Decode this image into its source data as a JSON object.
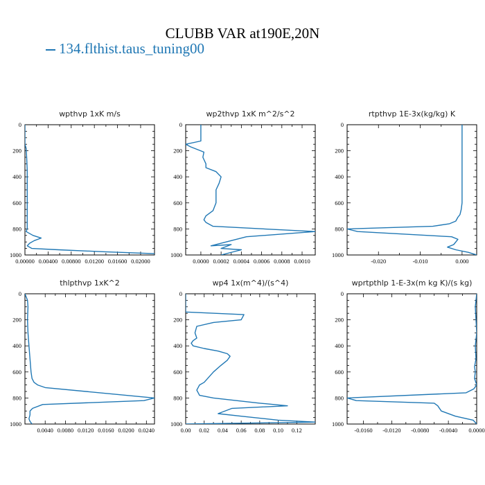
{
  "header": {
    "title": "CLUBB VAR at190E,20N",
    "legend_label": "134.flthist.taus_tuning00",
    "legend_color": "#1f77b4"
  },
  "chart_data": [
    {
      "type": "line",
      "title": "wpthvp   1xK m/s",
      "xlim": [
        0,
        0.0224
      ],
      "ylim": [
        1000,
        0
      ],
      "yticks": [
        0,
        200,
        400,
        600,
        800,
        1000
      ],
      "xticks": [
        0.0,
        0.004,
        0.008,
        0.012,
        0.016,
        0.02
      ],
      "xticklabels": [
        "0.00000",
        "0.00400",
        "0.00800",
        "0.01200",
        "0.01600",
        "0.02000"
      ],
      "series": [
        {
          "color": "#1f77b4",
          "x": [
            0.0,
            0.0,
            0.0,
            0.0,
            0.0002,
            0.0003,
            0.0004,
            0.0004,
            0.0004,
            0.0004,
            0.0004,
            0.0004,
            0.0004,
            0.0002,
            0.0014,
            0.0028,
            0.0016,
            0.0008,
            0.0004,
            0.0012,
            0.0058,
            0.0135,
            0.0224
          ],
          "y": [
            0,
            100,
            135,
            150,
            180,
            250,
            350,
            450,
            550,
            650,
            720,
            780,
            800,
            820,
            850,
            870,
            890,
            910,
            930,
            950,
            960,
            975,
            990
          ]
        }
      ]
    },
    {
      "type": "line",
      "title": "wp2thvp   1xK m^2/s^2",
      "xlim": [
        -0.00015,
        0.00113
      ],
      "ylim": [
        1000,
        0
      ],
      "yticks": [
        0,
        200,
        400,
        600,
        800,
        1000
      ],
      "xticks": [
        0.0,
        0.0002,
        0.0004,
        0.0006,
        0.0008,
        0.001
      ],
      "xticklabels": [
        "0.0000",
        "0.0002",
        "0.0004",
        "0.0006",
        "0.0008",
        "0.0010"
      ],
      "series": [
        {
          "color": "#1f77b4",
          "x": [
            0.0,
            0.0,
            0.0,
            -0.00015,
            -0.0001,
            3e-05,
            2e-05,
            5e-05,
            5e-05,
            0.00015,
            0.0002,
            0.00018,
            0.00015,
            0.00015,
            0.00012,
            5e-05,
            3e-05,
            5e-05,
            0.00012,
            0.00113,
            0.00045,
            0.00025,
            0.0001,
            0.0003,
            0.0002,
            0.0004,
            0.0002
          ],
          "y": [
            0,
            50,
            125,
            150,
            170,
            210,
            250,
            300,
            330,
            360,
            400,
            450,
            500,
            600,
            660,
            700,
            730,
            750,
            780,
            820,
            860,
            900,
            930,
            920,
            950,
            960,
            1000
          ]
        }
      ]
    },
    {
      "type": "line",
      "title": "rtpthvp   1E-3x(kg/kg) K",
      "xlim": [
        -0.0275,
        0.0035
      ],
      "ylim": [
        1000,
        0
      ],
      "yticks": [
        0,
        200,
        400,
        600,
        800,
        1000
      ],
      "xticks": [
        -0.02,
        -0.01,
        0.0
      ],
      "xticklabels": [
        "-0.020",
        "-0.010",
        "0.000"
      ],
      "series": [
        {
          "color": "#1f77b4",
          "x": [
            0.0,
            0.0,
            0.0,
            0.0,
            0.0,
            -0.0002,
            -0.0005,
            -0.001,
            -0.0015,
            -0.003,
            -0.007,
            -0.0275,
            -0.025,
            -0.0025,
            -0.001,
            -0.002,
            -0.0035,
            -0.0015,
            0.0015,
            0.0035
          ],
          "y": [
            0,
            100,
            300,
            500,
            600,
            650,
            690,
            710,
            740,
            760,
            780,
            800,
            820,
            860,
            880,
            920,
            940,
            960,
            980,
            1000
          ]
        }
      ]
    },
    {
      "type": "line",
      "title": "thlpthvp   1xK^2",
      "xlim": [
        0.0,
        0.0256
      ],
      "ylim": [
        1000,
        0
      ],
      "yticks": [
        0,
        200,
        400,
        600,
        800,
        1000
      ],
      "xticks": [
        0.004,
        0.008,
        0.012,
        0.016,
        0.02,
        0.024
      ],
      "xticklabels": [
        "0.0040",
        "0.0080",
        "0.0120",
        "0.0160",
        "0.0200",
        "0.0240"
      ],
      "series": [
        {
          "color": "#1f77b4",
          "x": [
            0.0,
            0.0005,
            0.0006,
            0.0005,
            0.0006,
            0.0008,
            0.001,
            0.0012,
            0.0014,
            0.0018,
            0.0025,
            0.004,
            0.0256,
            0.0235,
            0.0035,
            0.0015,
            0.001,
            0.001,
            0.0008,
            0.001,
            0.0014
          ],
          "y": [
            0,
            50,
            100,
            200,
            300,
            400,
            500,
            600,
            650,
            680,
            700,
            720,
            800,
            820,
            850,
            880,
            900,
            930,
            960,
            980,
            1000
          ]
        }
      ]
    },
    {
      "type": "line",
      "title": "wp4   1x(m^4)/(s^4)",
      "xlim": [
        0.0,
        0.14
      ],
      "ylim": [
        1000,
        0
      ],
      "yticks": [
        0,
        200,
        400,
        600,
        800,
        1000
      ],
      "xticks": [
        0.0,
        0.02,
        0.04,
        0.06,
        0.08,
        0.1,
        0.12
      ],
      "xticklabels": [
        "0.00",
        "0.02",
        "0.04",
        "0.06",
        "0.08",
        "0.10",
        "0.12"
      ],
      "series": [
        {
          "color": "#1f77b4",
          "x": [
            0.0,
            0.0,
            0.0,
            0.063,
            0.06,
            0.03,
            0.012,
            0.01,
            0.012,
            0.008,
            0.006,
            0.008,
            0.02,
            0.035,
            0.045,
            0.048,
            0.045,
            0.038,
            0.03,
            0.025,
            0.02,
            0.015,
            0.012,
            0.015,
            0.03,
            0.08,
            0.11,
            0.05,
            0.035,
            0.06,
            0.1,
            0.14,
            0.0
          ],
          "y": [
            0,
            50,
            140,
            160,
            200,
            220,
            250,
            300,
            340,
            360,
            380,
            400,
            420,
            440,
            460,
            480,
            510,
            550,
            600,
            640,
            680,
            700,
            740,
            780,
            800,
            840,
            860,
            880,
            920,
            940,
            970,
            985,
            1000
          ]
        }
      ]
    },
    {
      "type": "line",
      "title": "wprtpthlp   1-E-3x(m kg K)/(s kg)",
      "xlim": [
        -0.0183,
        0.0
      ],
      "ylim": [
        1000,
        0
      ],
      "yticks": [
        0,
        200,
        400,
        600,
        800,
        1000
      ],
      "xticks": [
        -0.016,
        -0.012,
        -0.008,
        -0.004,
        0.0
      ],
      "xticklabels": [
        "-0.0160",
        "-0.0120",
        "-0.0080",
        "-0.0040",
        "0.0000"
      ],
      "series": [
        {
          "color": "#1f77b4",
          "x": [
            0.0,
            -0.0002,
            -0.0001,
            0.0,
            -0.0002,
            -0.0001,
            -0.0003,
            -0.0002,
            -0.0003,
            0.0,
            -0.0004,
            -0.0015,
            -0.0183,
            -0.017,
            -0.006,
            -0.0055,
            -0.005,
            -0.003,
            -0.0005,
            0.0
          ],
          "y": [
            0,
            100,
            200,
            300,
            400,
            500,
            560,
            600,
            650,
            700,
            730,
            760,
            800,
            820,
            840,
            860,
            900,
            940,
            970,
            1000
          ]
        }
      ]
    }
  ]
}
